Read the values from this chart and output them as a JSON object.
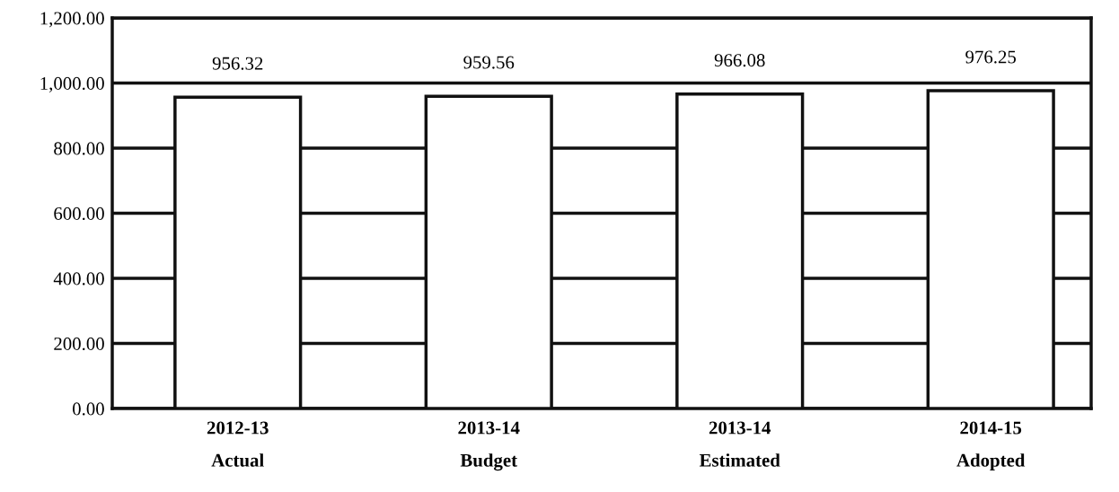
{
  "chart_data": {
    "type": "bar",
    "categories": [
      "2012-13\nActual",
      "2013-14\nBudget",
      "2013-14\nEstimated",
      "2014-15\nAdopted"
    ],
    "values": [
      956.32,
      959.56,
      966.08,
      976.25
    ],
    "color": "#ffffff",
    "data_labels": true,
    "grid": "y",
    "legend": false,
    "ylim": [
      0,
      1200
    ],
    "yticks": [
      {
        "value": 0,
        "label": "0.00"
      },
      {
        "value": 200,
        "label": "200.00"
      },
      {
        "value": 400,
        "label": "400.00"
      },
      {
        "value": 600,
        "label": "600.00"
      },
      {
        "value": 800,
        "label": "800.00"
      },
      {
        "value": 1000,
        "label": "1,000.00"
      },
      {
        "value": 1200,
        "label": "1,200.00"
      }
    ]
  }
}
